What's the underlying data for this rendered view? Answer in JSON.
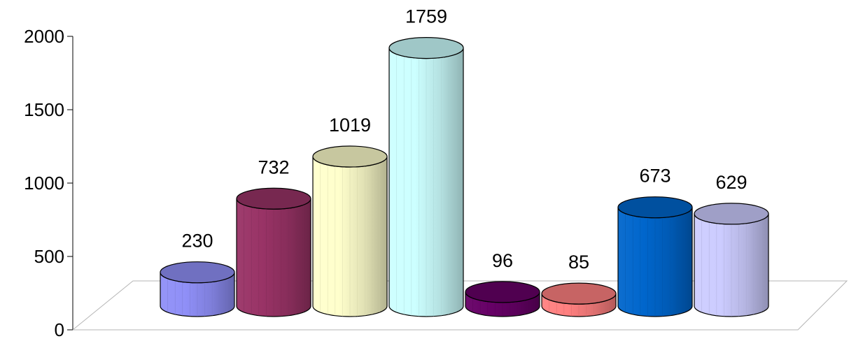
{
  "chart_data": {
    "type": "bar",
    "style": "3d-cylinder",
    "categories": [
      "",
      "",
      "",
      "",
      "",
      "",
      "",
      ""
    ],
    "values": [
      230,
      732,
      1019,
      1759,
      96,
      85,
      673,
      629
    ],
    "data_labels": [
      "230",
      "732",
      "1019",
      "1759",
      "96",
      "85",
      "673",
      "629"
    ],
    "colors": [
      "#8f8ff7",
      "#993366",
      "#ffffcc",
      "#ccffff",
      "#660066",
      "#ff8080",
      "#0066cc",
      "#ccccff"
    ],
    "y_ticks": [
      "0",
      "500",
      "1000",
      "1500",
      "2000"
    ],
    "y_tick_values": [
      0,
      500,
      1000,
      1500,
      2000
    ],
    "ylim": [
      0,
      2000
    ],
    "title": "",
    "xlabel": "",
    "ylabel": "",
    "grid": false,
    "legend": "none"
  }
}
